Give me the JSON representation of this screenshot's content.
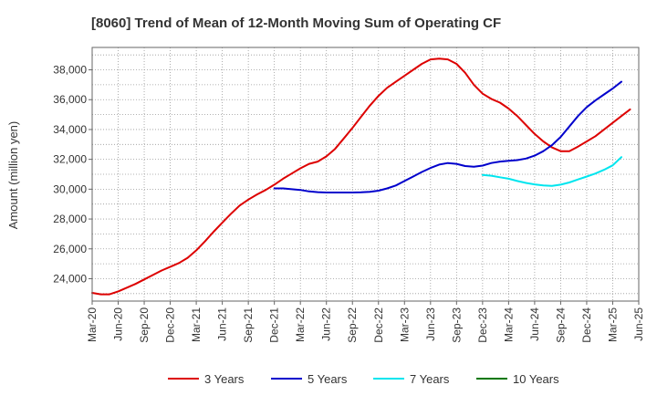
{
  "chart_data": {
    "type": "line",
    "title": "[8060]  Trend of Mean of 12-Month Moving Sum of Operating CF",
    "ylabel": "Amount (million yen)",
    "xlabel": "",
    "ylim": [
      22500,
      39500
    ],
    "y_ticks": [
      24000,
      26000,
      28000,
      30000,
      32000,
      34000,
      36000,
      38000
    ],
    "y_tick_labels": [
      "24,000",
      "26,000",
      "28,000",
      "30,000",
      "32,000",
      "34,000",
      "36,000",
      "38,000"
    ],
    "x_ticks": [
      "Mar-20",
      "Jun-20",
      "Sep-20",
      "Dec-20",
      "Mar-21",
      "Jun-21",
      "Sep-21",
      "Dec-21",
      "Mar-22",
      "Jun-22",
      "Sep-22",
      "Dec-22",
      "Mar-23",
      "Jun-23",
      "Sep-23",
      "Dec-23",
      "Mar-24",
      "Jun-24",
      "Sep-24",
      "Dec-24",
      "Mar-25",
      "Jun-25"
    ],
    "grid": true,
    "legend_position": "bottom",
    "series": [
      {
        "name": "3 Years",
        "color": "#dd0000",
        "start_month": 0,
        "values": [
          23050,
          22950,
          22950,
          23150,
          23400,
          23650,
          23950,
          24250,
          24550,
          24800,
          25050,
          25400,
          25900,
          26500,
          27150,
          27750,
          28350,
          28900,
          29300,
          29650,
          29950,
          30300,
          30700,
          31050,
          31400,
          31700,
          31850,
          32200,
          32700,
          33400,
          34100,
          34850,
          35600,
          36250,
          36800,
          37200,
          37600,
          38000,
          38400,
          38700,
          38750,
          38700,
          38400,
          37800,
          37000,
          36400,
          36050,
          35800,
          35400,
          34900,
          34300,
          33700,
          33200,
          32800,
          32550,
          32550,
          32850,
          33200,
          33550,
          34000,
          34450,
          34900,
          35350
        ]
      },
      {
        "name": "5 Years",
        "color": "#0000cc",
        "start_month": 21,
        "values": [
          30050,
          30050,
          30000,
          29950,
          29850,
          29800,
          29780,
          29780,
          29780,
          29780,
          29790,
          29820,
          29900,
          30050,
          30250,
          30550,
          30850,
          31150,
          31420,
          31650,
          31750,
          31700,
          31550,
          31500,
          31580,
          31750,
          31850,
          31900,
          31950,
          32050,
          32250,
          32550,
          32950,
          33500,
          34200,
          34900,
          35500,
          35950,
          36350,
          36750,
          37200
        ]
      },
      {
        "name": "7 Years",
        "color": "#00e5ee",
        "start_month": 45,
        "values": [
          30950,
          30900,
          30800,
          30700,
          30550,
          30420,
          30320,
          30250,
          30220,
          30300,
          30450,
          30650,
          30850,
          31050,
          31300,
          31600,
          32150
        ]
      },
      {
        "name": "10 Years",
        "color": "#007700",
        "start_month": 0,
        "values": []
      }
    ]
  }
}
